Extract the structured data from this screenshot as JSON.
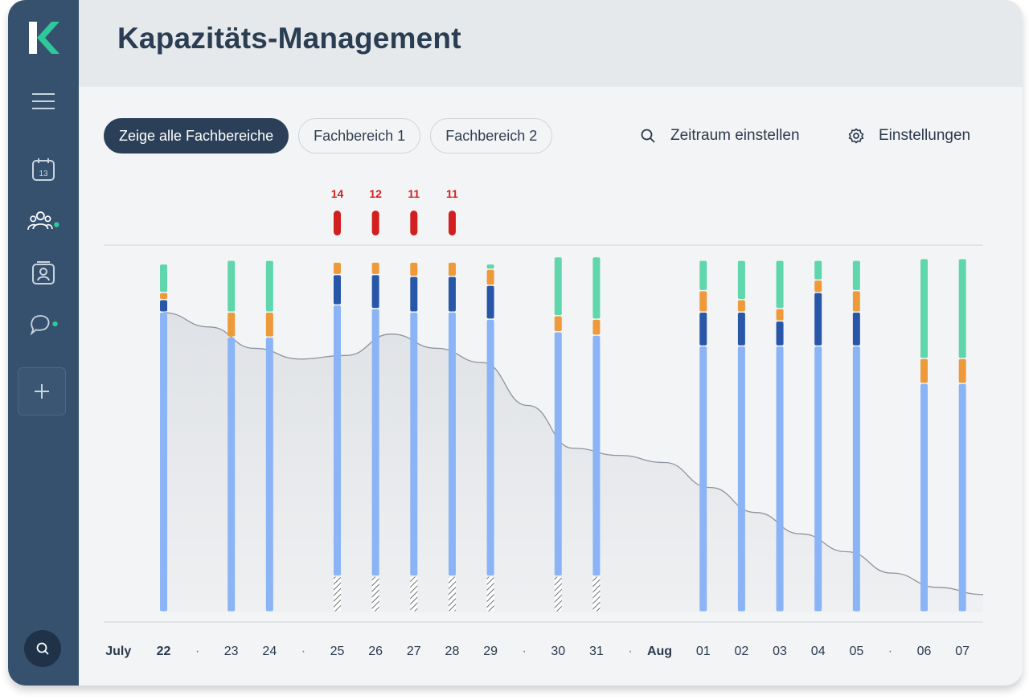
{
  "app": {
    "title": "Kapazitäts-Management"
  },
  "sidebar": {
    "logo": "K",
    "icons": [
      "menu-icon",
      "calendar-icon",
      "people-icon",
      "contact-card-icon",
      "chat-icon",
      "plus-icon",
      "search-icon"
    ],
    "calendar_day": "13"
  },
  "filters": [
    {
      "label": "Zeige alle Fachbereiche",
      "active": true
    },
    {
      "label": "Fachbereich 1",
      "active": false
    },
    {
      "label": "Fachbereich 2",
      "active": false
    }
  ],
  "actions": {
    "period_label": "Zeitraum einstellen",
    "settings_label": "Einstellungen"
  },
  "colors": {
    "green": "#5fd6ab",
    "orange": "#ee9a3a",
    "darkblue": "#2857a8",
    "lightblue": "#8ab4f6",
    "red": "#d21f1f",
    "accent": "#2ec99a"
  },
  "chart_data": {
    "type": "bar",
    "x_axis": {
      "items": [
        {
          "label": "July",
          "kind": "month"
        },
        {
          "label": "22",
          "kind": "day"
        },
        {
          "label": "·",
          "kind": "dot"
        },
        {
          "label": "23",
          "kind": "day"
        },
        {
          "label": "24",
          "kind": "day"
        },
        {
          "label": "·",
          "kind": "dot"
        },
        {
          "label": "25",
          "kind": "day"
        },
        {
          "label": "26",
          "kind": "day"
        },
        {
          "label": "27",
          "kind": "day"
        },
        {
          "label": "28",
          "kind": "day"
        },
        {
          "label": "29",
          "kind": "day"
        },
        {
          "label": "·",
          "kind": "dot"
        },
        {
          "label": "30",
          "kind": "day"
        },
        {
          "label": "31",
          "kind": "day"
        },
        {
          "label": "·",
          "kind": "dot"
        },
        {
          "label": "Aug",
          "kind": "month"
        },
        {
          "label": "01",
          "kind": "day"
        },
        {
          "label": "02",
          "kind": "day"
        },
        {
          "label": "03",
          "kind": "day"
        },
        {
          "label": "04",
          "kind": "day"
        },
        {
          "label": "05",
          "kind": "day"
        },
        {
          "label": "·",
          "kind": "dot"
        },
        {
          "label": "06",
          "kind": "day"
        },
        {
          "label": "07",
          "kind": "day"
        }
      ]
    },
    "ylim": [
      0,
      100
    ],
    "stack_order": [
      "hatched",
      "lightblue",
      "darkblue",
      "orange",
      "green"
    ],
    "bars": [
      {
        "day": "22",
        "hatched": 0,
        "lightblue": 84.0,
        "darkblue": 3.5,
        "orange": 2.0,
        "green": 8.0,
        "overload": null
      },
      {
        "day": "23",
        "hatched": 0,
        "lightblue": 77.0,
        "darkblue": 0,
        "orange": 7.0,
        "green": 14.5,
        "overload": null
      },
      {
        "day": "24",
        "hatched": 0,
        "lightblue": 77.0,
        "darkblue": 0,
        "orange": 7.0,
        "green": 14.5,
        "overload": null
      },
      {
        "day": "25",
        "hatched": 10.0,
        "lightblue": 76.0,
        "darkblue": 8.5,
        "orange": 3.5,
        "green": 0,
        "overload": 14
      },
      {
        "day": "26",
        "hatched": 10.0,
        "lightblue": 75.0,
        "darkblue": 9.5,
        "orange": 3.5,
        "green": 0,
        "overload": 12
      },
      {
        "day": "27",
        "hatched": 10.0,
        "lightblue": 74.0,
        "darkblue": 10.0,
        "orange": 4.0,
        "green": 0,
        "overload": 11
      },
      {
        "day": "28",
        "hatched": 10.0,
        "lightblue": 74.0,
        "darkblue": 10.0,
        "orange": 4.0,
        "green": 0,
        "overload": 11
      },
      {
        "day": "29",
        "hatched": 10.0,
        "lightblue": 72.0,
        "darkblue": 9.5,
        "orange": 4.5,
        "green": 1.5,
        "overload": null
      },
      {
        "day": "30",
        "hatched": 10.0,
        "lightblue": 68.5,
        "darkblue": 0,
        "orange": 4.5,
        "green": 16.5,
        "overload": null
      },
      {
        "day": "31",
        "hatched": 10.0,
        "lightblue": 67.5,
        "darkblue": 0,
        "orange": 4.5,
        "green": 17.5,
        "overload": null
      },
      {
        "day": "01",
        "hatched": 0,
        "lightblue": 74.5,
        "darkblue": 9.5,
        "orange": 6.0,
        "green": 8.5,
        "overload": null
      },
      {
        "day": "02",
        "hatched": 0,
        "lightblue": 74.5,
        "darkblue": 9.5,
        "orange": 3.5,
        "green": 11.0,
        "overload": null
      },
      {
        "day": "03",
        "hatched": 0,
        "lightblue": 74.5,
        "darkblue": 7.0,
        "orange": 3.5,
        "green": 13.5,
        "overload": null
      },
      {
        "day": "04",
        "hatched": 0,
        "lightblue": 74.5,
        "darkblue": 15.0,
        "orange": 3.5,
        "green": 5.5,
        "overload": null
      },
      {
        "day": "05",
        "hatched": 0,
        "lightblue": 74.5,
        "darkblue": 9.5,
        "orange": 6.0,
        "green": 8.5,
        "overload": null
      },
      {
        "day": "06",
        "hatched": 0,
        "lightblue": 64.0,
        "darkblue": 0,
        "orange": 7.0,
        "green": 28.0,
        "overload": null
      },
      {
        "day": "07",
        "hatched": 0,
        "lightblue": 64.0,
        "darkblue": 0,
        "orange": 7.0,
        "green": 28.0,
        "overload": null
      }
    ],
    "trend_line": [
      84,
      80,
      74,
      71,
      72,
      78,
      74,
      70,
      58,
      46,
      44,
      42,
      35,
      28,
      22,
      17,
      11,
      7,
      5
    ]
  }
}
